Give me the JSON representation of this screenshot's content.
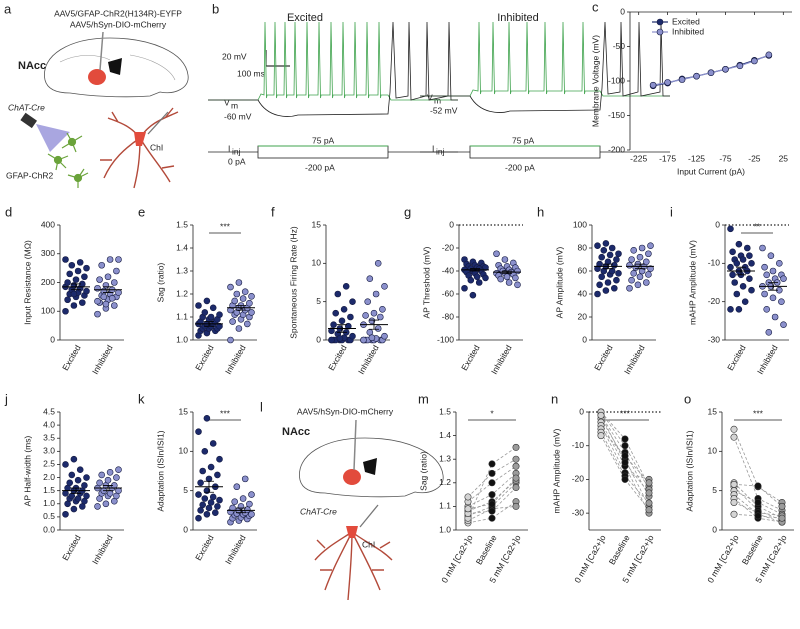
{
  "diagrams": {
    "a": {
      "panel": "a",
      "region": "NAcc",
      "virus1": "AAV5/GFAP-ChR2(H134R)-EYFP",
      "virus2": "AAV5/hSyn-DIO-mCherry",
      "cre": "ChAT-Cre",
      "cell": "ChI",
      "astro": "GFAP-ChR2"
    },
    "b": {
      "panel": "b",
      "left_title": "Excited",
      "right_title": "Inhibited",
      "scale_v": "20 mV",
      "scale_t": "100 ms",
      "vm": "V",
      "vm_sub": "m",
      "rest_left": "-60 mV",
      "rest_right": "-52 mV",
      "step_up": "75 pA",
      "step_down": "-200 pA",
      "zero": "0 pA",
      "inj": "I",
      "inj_sub": "inj"
    },
    "l": {
      "panel": "l",
      "region": "NAcc",
      "virus": "AAV5/hSyn-DIO-mCherry",
      "cre": "ChAT-Cre",
      "cell": "ChI"
    }
  },
  "chart_data": [
    {
      "panel": "c",
      "type": "line",
      "xlabel": "Input Current (pA)",
      "ylabel": "Membrane Voltage (mV)",
      "x": [
        -200,
        -175,
        -150,
        -125,
        -100,
        -75,
        -50,
        -25,
        0
      ],
      "series": [
        {
          "name": "Excited",
          "color": "#1c2a6b",
          "values": [
            -107,
            -103,
            -97,
            -93,
            -88,
            -83,
            -77,
            -70,
            -63
          ]
        },
        {
          "name": "Inhibited",
          "color": "#8b90cc",
          "values": [
            -106,
            -102,
            -98,
            -93,
            -88,
            -83,
            -78,
            -71,
            -62
          ]
        }
      ],
      "xlim": [
        -240,
        40
      ],
      "xticks": [
        -225,
        -175,
        -125,
        -75,
        -25,
        25
      ],
      "ylim": [
        -200,
        0
      ],
      "yticks": [
        0,
        -50,
        -100,
        -150,
        -200
      ],
      "legend": "upper left"
    },
    {
      "panel": "d",
      "type": "strip",
      "ylabel": "Input Resistance (MΩ)",
      "categories": [
        "Excited",
        "Inhibited"
      ],
      "series": [
        {
          "color": "#1c2a6b",
          "mean": 185,
          "sem": 10,
          "values": [
            100,
            120,
            130,
            140,
            150,
            155,
            160,
            165,
            170,
            175,
            180,
            185,
            190,
            195,
            200,
            210,
            220,
            230,
            240,
            250,
            260,
            270,
            280,
            160
          ]
        },
        {
          "color": "#8b90cc",
          "mean": 175,
          "sem": 10,
          "values": [
            90,
            110,
            120,
            130,
            140,
            150,
            155,
            160,
            165,
            170,
            175,
            180,
            190,
            200,
            210,
            220,
            240,
            260,
            280,
            280,
            150,
            145,
            135,
            125
          ]
        }
      ],
      "ylim": [
        0,
        400
      ],
      "yticks": [
        0,
        100,
        200,
        300,
        400
      ]
    },
    {
      "panel": "e",
      "type": "strip",
      "ylabel": "Sag (ratio)",
      "categories": [
        "Excited",
        "Inhibited"
      ],
      "significance": "***",
      "series": [
        {
          "color": "#1c2a6b",
          "mean": 1.07,
          "sem": 0.01,
          "values": [
            1.02,
            1.03,
            1.04,
            1.04,
            1.05,
            1.05,
            1.05,
            1.06,
            1.06,
            1.06,
            1.07,
            1.07,
            1.07,
            1.08,
            1.08,
            1.09,
            1.09,
            1.1,
            1.1,
            1.11,
            1.12,
            1.14,
            1.15,
            1.17
          ]
        },
        {
          "color": "#8b90cc",
          "mean": 1.14,
          "sem": 0.01,
          "values": [
            1.0,
            1.05,
            1.07,
            1.08,
            1.09,
            1.1,
            1.11,
            1.11,
            1.12,
            1.12,
            1.13,
            1.13,
            1.14,
            1.14,
            1.15,
            1.15,
            1.16,
            1.17,
            1.18,
            1.19,
            1.2,
            1.21,
            1.23,
            1.25
          ]
        }
      ],
      "ylim": [
        1,
        1.5
      ],
      "yticks": [
        {
          "value": 1,
          "label": "1.0"
        },
        1.1,
        1.2,
        1.3,
        1.4,
        1.5
      ]
    },
    {
      "panel": "f",
      "type": "strip",
      "ylabel": "Spontaneous Firing Rate (Hz)",
      "categories": [
        "Excited",
        "Inhibited"
      ],
      "series": [
        {
          "color": "#1c2a6b",
          "mean": 1.5,
          "sem": 0.5,
          "values": [
            0,
            0,
            0,
            0,
            0,
            0,
            0,
            0.3,
            0.5,
            0.8,
            1,
            1.2,
            1.5,
            1.8,
            2,
            2.5,
            3,
            3.5,
            4,
            5,
            6,
            7,
            0,
            0.2
          ]
        },
        {
          "color": "#8b90cc",
          "mean": 2,
          "sem": 0.6,
          "values": [
            0,
            0,
            0,
            0,
            0,
            0,
            0,
            0.2,
            0.5,
            1,
            1.5,
            2,
            2.5,
            3,
            3.2,
            3.5,
            4,
            5,
            6,
            7,
            8,
            10,
            0,
            0.3
          ]
        }
      ],
      "ylim": [
        0,
        15
      ],
      "yticks": [
        0,
        5,
        10,
        15
      ]
    },
    {
      "panel": "g",
      "type": "strip",
      "ylabel": "AP Threshold (mV)",
      "categories": [
        "Excited",
        "Inhibited"
      ],
      "zero_line": true,
      "series": [
        {
          "color": "#1c2a6b",
          "mean": -39,
          "sem": 1,
          "values": [
            -30,
            -32,
            -33,
            -34,
            -35,
            -36,
            -36,
            -37,
            -37,
            -38,
            -38,
            -39,
            -40,
            -40,
            -41,
            -42,
            -43,
            -44,
            -45,
            -46,
            -48,
            -50,
            -55,
            -61
          ]
        },
        {
          "color": "#8b90cc",
          "mean": -41,
          "sem": 1,
          "values": [
            -25,
            -30,
            -33,
            -35,
            -36,
            -37,
            -38,
            -39,
            -40,
            -40,
            -41,
            -42,
            -42,
            -43,
            -44,
            -45,
            -46,
            -47,
            -50,
            -52
          ]
        }
      ],
      "ylim": [
        -100,
        0
      ],
      "yticks": [
        0,
        -20,
        -40,
        -60,
        -80,
        -100
      ]
    },
    {
      "panel": "h",
      "type": "strip",
      "ylabel": "AP Amplitude (mV)",
      "categories": [
        "Excited",
        "Inhibited"
      ],
      "series": [
        {
          "color": "#1c2a6b",
          "mean": 64,
          "sem": 2,
          "values": [
            40,
            43,
            45,
            48,
            50,
            52,
            55,
            57,
            58,
            60,
            60,
            62,
            64,
            65,
            66,
            68,
            70,
            72,
            74,
            75,
            78,
            80,
            82,
            84
          ]
        },
        {
          "color": "#8b90cc",
          "mean": 64,
          "sem": 2,
          "values": [
            45,
            48,
            50,
            52,
            55,
            57,
            58,
            60,
            62,
            63,
            64,
            65,
            66,
            68,
            70,
            72,
            75,
            78,
            80,
            82
          ]
        }
      ],
      "ylim": [
        0,
        100
      ],
      "yticks": [
        0,
        20,
        40,
        60,
        80,
        100
      ]
    },
    {
      "panel": "i",
      "type": "strip",
      "ylabel": "mAHP Amplitude (mV)",
      "categories": [
        "Excited",
        "Inhibited"
      ],
      "zero_line": true,
      "significance": "**",
      "series": [
        {
          "color": "#1c2a6b",
          "mean": -12,
          "sem": 1,
          "values": [
            -1,
            -5,
            -6,
            -7,
            -8,
            -8,
            -9,
            -9,
            -10,
            -10,
            -11,
            -11,
            -12,
            -12,
            -13,
            -13,
            -14,
            -15,
            -16,
            -17,
            -18,
            -20,
            -22,
            -22
          ]
        },
        {
          "color": "#8b90cc",
          "mean": -16,
          "sem": 1,
          "values": [
            -6,
            -8,
            -10,
            -11,
            -12,
            -13,
            -13,
            -14,
            -14,
            -15,
            -15,
            -16,
            -16,
            -17,
            -18,
            -19,
            -20,
            -22,
            -24,
            -26,
            -28
          ]
        }
      ],
      "ylim": [
        -30,
        0
      ],
      "yticks": [
        0,
        -10,
        -20,
        -30
      ]
    },
    {
      "panel": "j",
      "type": "strip",
      "ylabel": "AP Half-width (ms)",
      "categories": [
        "Excited",
        "Inhibited"
      ],
      "series": [
        {
          "color": "#1c2a6b",
          "mean": 1.5,
          "sem": 0.1,
          "values": [
            0.6,
            0.8,
            0.9,
            1,
            1.1,
            1.1,
            1.2,
            1.2,
            1.3,
            1.3,
            1.4,
            1.4,
            1.5,
            1.5,
            1.6,
            1.6,
            1.7,
            1.8,
            1.9,
            2,
            2.1,
            2.3,
            2.5,
            2.7
          ]
        },
        {
          "color": "#8b90cc",
          "mean": 1.6,
          "sem": 0.1,
          "values": [
            0.9,
            1,
            1.1,
            1.2,
            1.3,
            1.3,
            1.4,
            1.4,
            1.5,
            1.5,
            1.6,
            1.6,
            1.7,
            1.7,
            1.8,
            1.9,
            2,
            2.1,
            2.2,
            2.3
          ]
        }
      ],
      "ylim": [
        0,
        4.5
      ],
      "yticks": [
        {
          "value": 0,
          "label": "0.0"
        },
        0.5,
        {
          "value": 1,
          "label": "1.0"
        },
        1.5,
        {
          "value": 2,
          "label": "2.0"
        },
        2.5,
        {
          "value": 3,
          "label": "3.0"
        },
        3.5,
        {
          "value": 4,
          "label": "4.0"
        },
        4.5
      ]
    },
    {
      "panel": "k",
      "type": "strip",
      "ylabel": "Adaptation (ISIn/ISI1)",
      "categories": [
        "Excited",
        "Inhibited"
      ],
      "significance": "***",
      "series": [
        {
          "color": "#1c2a6b",
          "mean": 5.5,
          "sem": 0.7,
          "values": [
            1.5,
            2,
            2.2,
            2.5,
            2.8,
            3,
            3.2,
            3.5,
            3.8,
            4,
            4.2,
            4.5,
            5,
            5.5,
            6,
            6.5,
            7,
            7.5,
            8,
            9,
            10,
            11,
            12.5,
            14.2
          ]
        },
        {
          "color": "#8b90cc",
          "mean": 2.5,
          "sem": 0.3,
          "values": [
            1,
            1.2,
            1.4,
            1.5,
            1.6,
            1.8,
            1.9,
            2,
            2,
            2.1,
            2.2,
            2.3,
            2.5,
            2.6,
            2.8,
            3,
            3.3,
            3.6,
            4,
            4.5,
            5.5,
            6.5
          ]
        }
      ],
      "ylim": [
        0,
        15
      ],
      "yticks": [
        0,
        5,
        10,
        15
      ]
    },
    {
      "panel": "m",
      "type": "paired",
      "ylabel": "Sag (ratio)",
      "significance": "*",
      "categories": [
        "0 mM [Ca2+]o",
        "Baseline",
        "5 mM [Ca2+]o"
      ],
      "category_colors": [
        "#d4d4d4",
        "#111111",
        "#9c9c9c"
      ],
      "series": [
        {
          "values": [
            1.06,
            1.1,
            1.2
          ]
        },
        {
          "values": [
            1.08,
            1.12,
            1.21
          ]
        },
        {
          "values": [
            1.03,
            1.05,
            1.12
          ]
        },
        {
          "values": [
            1.1,
            1.15,
            1.24
          ]
        },
        {
          "values": [
            1.12,
            1.2,
            1.27
          ]
        },
        {
          "values": [
            1.04,
            1.09,
            1.1
          ]
        },
        {
          "values": [
            1.05,
            1.28,
            1.35
          ]
        },
        {
          "values": [
            1.07,
            1.08,
            1.18
          ]
        },
        {
          "values": [
            1.09,
            1.11,
            1.22
          ]
        },
        {
          "values": [
            1.14,
            1.24,
            1.3
          ]
        }
      ],
      "ylim": [
        1,
        1.5
      ],
      "yticks": [
        {
          "value": 1,
          "label": "1.0"
        },
        1.1,
        1.2,
        1.3,
        1.4,
        1.5
      ]
    },
    {
      "panel": "n",
      "type": "paired",
      "ylabel": "mAHP Amplitude (mV)",
      "significance": "***",
      "zero_line": true,
      "categories": [
        "0 mM [Ca2+]o",
        "Baseline",
        "5 mM [Ca2+]o"
      ],
      "category_colors": [
        "#d4d4d4",
        "#111111",
        "#9c9c9c"
      ],
      "series": [
        {
          "values": [
            0,
            -8,
            -22
          ]
        },
        {
          "values": [
            -1,
            -12,
            -25
          ]
        },
        {
          "values": [
            -2,
            -14,
            -28
          ]
        },
        {
          "values": [
            -3,
            -16,
            -30
          ]
        },
        {
          "values": [
            -4,
            -18,
            -20
          ]
        },
        {
          "values": [
            -5,
            -13,
            -21
          ]
        },
        {
          "values": [
            -6,
            -19,
            -27
          ]
        },
        {
          "values": [
            -7,
            -20,
            -29
          ]
        },
        {
          "values": [
            0,
            -10,
            -23
          ]
        },
        {
          "values": [
            -1,
            -15,
            -24
          ]
        }
      ],
      "ylim": [
        -35,
        0
      ],
      "yticks": [
        0,
        -10,
        -20,
        -30
      ]
    },
    {
      "panel": "o",
      "type": "paired",
      "ylabel": "Adaptation (ISIn/ISI1)",
      "significance": "***",
      "categories": [
        "0 mM [Ca2+]o",
        "Baseline",
        "5 mM [Ca2+]o"
      ],
      "category_colors": [
        "#d4d4d4",
        "#111111",
        "#9c9c9c"
      ],
      "series": [
        {
          "values": [
            12.8,
            5.5,
            3.5
          ]
        },
        {
          "values": [
            11.8,
            4,
            2.5
          ]
        },
        {
          "values": [
            6,
            3,
            1.5
          ]
        },
        {
          "values": [
            5.5,
            2.5,
            1.2
          ]
        },
        {
          "values": [
            5,
            3.5,
            2
          ]
        },
        {
          "values": [
            4.5,
            2,
            1
          ]
        },
        {
          "values": [
            4,
            1.5,
            1
          ]
        },
        {
          "values": [
            5.8,
            5.6,
            3
          ]
        },
        {
          "values": [
            3.5,
            2.2,
            1.8
          ]
        },
        {
          "values": [
            2,
            1.8,
            1.5
          ]
        }
      ],
      "ylim": [
        0,
        15
      ],
      "yticks": [
        0,
        5,
        10,
        15
      ]
    }
  ]
}
